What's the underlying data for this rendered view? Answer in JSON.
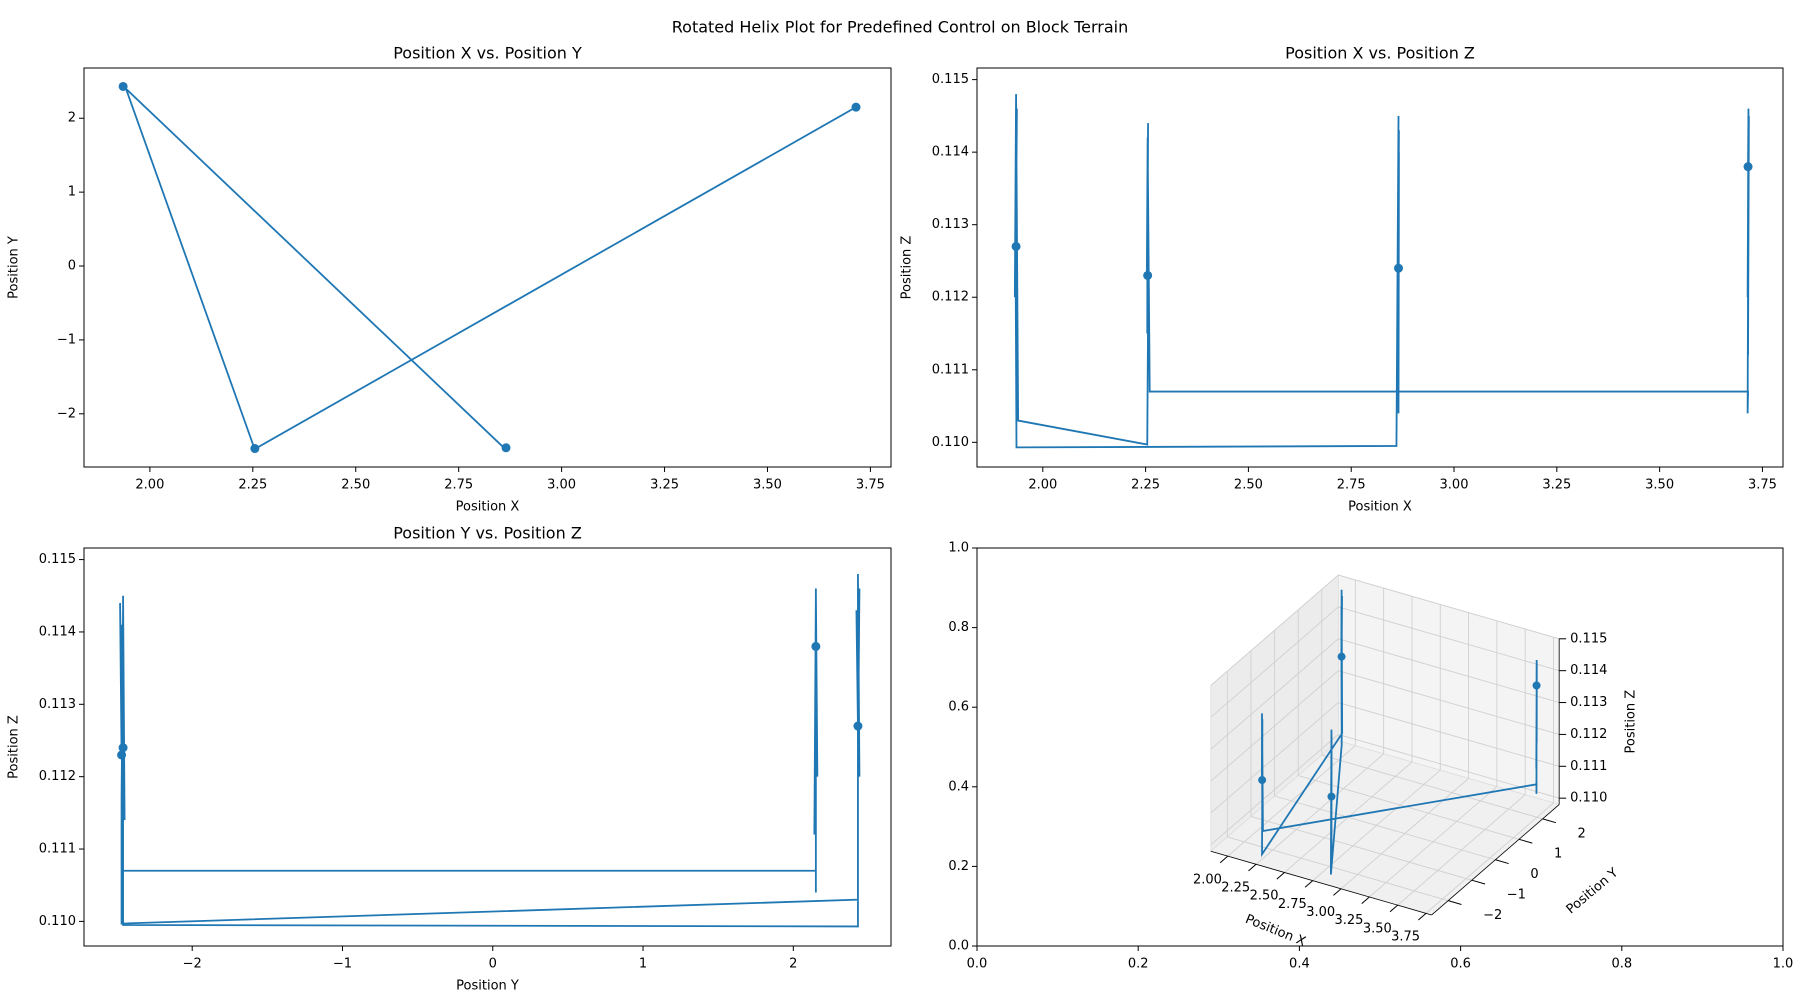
{
  "title": "Rotated Helix Plot for Predefined Control on Block Terrain",
  "chart_data": [
    {
      "type": "line",
      "title": "Position X vs. Position Y",
      "xlabel": "Position X",
      "ylabel": "Position Y",
      "color": "#1f77b4",
      "x": [
        3.715,
        3.716,
        3.714,
        3.717,
        3.715,
        3.716,
        3.714,
        3.715,
        2.26,
        2.255,
        2.254,
        2.256,
        2.253,
        2.255,
        2.256,
        2.254,
        1.94,
        1.935,
        1.932,
        1.936,
        1.933,
        1.937,
        1.934,
        1.936,
        2.86,
        2.865,
        2.863,
        2.866,
        2.864,
        2.866,
        2.865
      ],
      "values": [
        2.15,
        2.15,
        2.16,
        2.15,
        2.14,
        2.15,
        2.15,
        2.15,
        -2.46,
        -2.47,
        -2.46,
        -2.48,
        -2.47,
        -2.46,
        -2.47,
        -2.47,
        2.43,
        2.43,
        2.44,
        2.42,
        2.43,
        2.44,
        2.43,
        2.43,
        -2.46,
        -2.46,
        -2.45,
        -2.46,
        -2.47,
        -2.46,
        -2.46
      ],
      "markers": {
        "x": [
          3.715,
          2.255,
          1.935,
          2.865
        ],
        "values": [
          2.15,
          -2.47,
          2.43,
          -2.46
        ]
      },
      "xlim": [
        1.84,
        3.8
      ],
      "xticks": [
        {
          "value": 2,
          "label": "2.00"
        },
        {
          "value": 2.25,
          "label": "2.25"
        },
        {
          "value": 2.5,
          "label": "2.50"
        },
        {
          "value": 2.75,
          "label": "2.75"
        },
        {
          "value": 3,
          "label": "3.00"
        },
        {
          "value": 3.25,
          "label": "3.25"
        },
        {
          "value": 3.5,
          "label": "3.50"
        },
        {
          "value": 3.75,
          "label": "3.75"
        }
      ],
      "ylim": [
        -2.72,
        2.68
      ],
      "yticks": [
        {
          "value": -2,
          "label": "−2"
        },
        {
          "value": -1,
          "label": "−1"
        },
        0,
        1,
        2
      ]
    },
    {
      "type": "line",
      "title": "Position X vs. Position Z",
      "xlabel": "Position X",
      "ylabel": "Position Z",
      "color": "#1f77b4",
      "x": [
        3.715,
        3.716,
        3.714,
        3.717,
        3.715,
        3.716,
        3.714,
        3.715,
        2.26,
        2.255,
        2.254,
        2.256,
        2.253,
        2.255,
        2.256,
        2.254,
        1.94,
        1.935,
        1.932,
        1.936,
        1.933,
        1.937,
        1.934,
        1.936,
        2.86,
        2.865,
        2.863,
        2.866,
        2.864,
        2.866,
        2.865
      ],
      "values": [
        0.1138,
        0.1146,
        0.112,
        0.1145,
        0.1112,
        0.114,
        0.1104,
        0.1107,
        0.1107,
        0.1141,
        0.1115,
        0.1144,
        0.1123,
        0.1142,
        0.1117,
        0.10997,
        0.1103,
        0.1148,
        0.112,
        0.1143,
        0.1127,
        0.1146,
        0.1123,
        0.10993,
        0.10995,
        0.1145,
        0.1114,
        0.1143,
        0.1124,
        0.114,
        0.1104
      ],
      "markers": {
        "x": [
          3.715,
          2.255,
          1.935,
          2.865
        ],
        "values": [
          0.1138,
          0.1123,
          0.1127,
          0.1124
        ]
      },
      "xlim": [
        1.84,
        3.8
      ],
      "xticks": [
        {
          "value": 2,
          "label": "2.00"
        },
        {
          "value": 2.25,
          "label": "2.25"
        },
        {
          "value": 2.5,
          "label": "2.50"
        },
        {
          "value": 2.75,
          "label": "2.75"
        },
        {
          "value": 3,
          "label": "3.00"
        },
        {
          "value": 3.25,
          "label": "3.25"
        },
        {
          "value": 3.5,
          "label": "3.50"
        },
        {
          "value": 3.75,
          "label": "3.75"
        }
      ],
      "ylim": [
        0.10966,
        0.11516
      ],
      "yticks": [
        {
          "value": 0.11,
          "label": "0.110"
        },
        0.111,
        0.112,
        0.113,
        0.114,
        0.115
      ]
    },
    {
      "type": "line",
      "title": "Position Y vs. Position Z",
      "xlabel": "Position Y",
      "ylabel": "Position Z",
      "color": "#1f77b4",
      "x": [
        2.15,
        2.15,
        2.16,
        2.15,
        2.14,
        2.15,
        2.15,
        2.15,
        -2.46,
        -2.47,
        -2.46,
        -2.48,
        -2.47,
        -2.46,
        -2.47,
        -2.47,
        2.43,
        2.43,
        2.44,
        2.42,
        2.43,
        2.44,
        2.43,
        2.43,
        -2.46,
        -2.46,
        -2.45,
        -2.46,
        -2.47,
        -2.46,
        -2.46
      ],
      "values": [
        0.1138,
        0.1146,
        0.112,
        0.1145,
        0.1112,
        0.114,
        0.1104,
        0.1107,
        0.1107,
        0.1141,
        0.1115,
        0.1144,
        0.1123,
        0.1142,
        0.1117,
        0.10997,
        0.1103,
        0.1148,
        0.112,
        0.1143,
        0.1127,
        0.1146,
        0.1123,
        0.10993,
        0.10995,
        0.1145,
        0.1114,
        0.1143,
        0.1124,
        0.114,
        0.1104
      ],
      "markers": {
        "x": [
          2.15,
          -2.47,
          2.43,
          -2.46
        ],
        "values": [
          0.1138,
          0.1123,
          0.1127,
          0.1124
        ]
      },
      "xlim": [
        -2.72,
        2.65
      ],
      "xticks": [
        {
          "value": -2,
          "label": "−2"
        },
        {
          "value": -1,
          "label": "−1"
        },
        0,
        1,
        2
      ],
      "ylim": [
        0.10966,
        0.11516
      ],
      "yticks": [
        {
          "value": 0.11,
          "label": "0.110"
        },
        0.111,
        0.112,
        0.113,
        0.114,
        0.115
      ]
    },
    {
      "type": "line3d",
      "xlabel": "Position X",
      "ylabel": "Position Y",
      "zlabel": "Position Z",
      "color": "#1f77b4",
      "x": [
        3.715,
        3.716,
        3.714,
        3.717,
        3.715,
        3.716,
        3.714,
        3.715,
        2.26,
        2.255,
        2.254,
        2.256,
        2.253,
        2.255,
        2.256,
        2.254,
        1.94,
        1.935,
        1.932,
        1.936,
        1.933,
        1.937,
        1.934,
        1.936,
        2.86,
        2.865,
        2.863,
        2.866,
        2.864,
        2.866,
        2.865
      ],
      "y": [
        2.15,
        2.15,
        2.16,
        2.15,
        2.14,
        2.15,
        2.15,
        2.15,
        -2.46,
        -2.47,
        -2.46,
        -2.48,
        -2.47,
        -2.46,
        -2.47,
        -2.47,
        2.43,
        2.43,
        2.44,
        2.42,
        2.43,
        2.44,
        2.43,
        2.43,
        -2.46,
        -2.46,
        -2.45,
        -2.46,
        -2.47,
        -2.46,
        -2.46
      ],
      "z": [
        0.1138,
        0.1146,
        0.112,
        0.1145,
        0.1112,
        0.114,
        0.1104,
        0.1107,
        0.1107,
        0.1141,
        0.1115,
        0.1144,
        0.1123,
        0.1142,
        0.1117,
        0.10997,
        0.1103,
        0.1148,
        0.112,
        0.1143,
        0.1127,
        0.1146,
        0.1123,
        0.10993,
        0.10995,
        0.1145,
        0.1114,
        0.1143,
        0.1124,
        0.114,
        0.1104
      ],
      "markers": {
        "x": [
          3.715,
          2.255,
          1.935,
          2.865
        ],
        "y": [
          2.15,
          -2.47,
          2.43,
          -2.46
        ],
        "z": [
          0.1138,
          0.1123,
          0.1127,
          0.1124
        ]
      },
      "xlim": [
        1.85,
        3.8
      ],
      "xticks": [
        {
          "value": 2,
          "label": "2.00"
        },
        {
          "value": 2.25,
          "label": "2.25"
        },
        {
          "value": 2.5,
          "label": "2.50"
        },
        {
          "value": 2.75,
          "label": "2.75"
        },
        {
          "value": 3,
          "label": "3.00"
        },
        {
          "value": 3.25,
          "label": "3.25"
        },
        {
          "value": 3.5,
          "label": "3.50"
        },
        {
          "value": 3.75,
          "label": "3.75"
        }
      ],
      "ylim": [
        -2.7,
        2.7
      ],
      "yticks": [
        {
          "value": -2,
          "label": "−2"
        },
        {
          "value": -1,
          "label": "−1"
        },
        0,
        1,
        2
      ],
      "zlim": [
        0.1098,
        0.115
      ],
      "zticks": [
        {
          "value": 0.11,
          "label": "0.110"
        },
        0.111,
        0.112,
        0.113,
        0.114,
        0.115
      ],
      "frame": {
        "xlim": [
          0,
          1
        ],
        "xticks": [
          {
            "value": 0,
            "label": "0.0"
          },
          0.2,
          0.4,
          0.6,
          0.8,
          {
            "value": 1,
            "label": "1.0"
          }
        ],
        "ylim": [
          0,
          1
        ],
        "yticks": [
          {
            "value": 0,
            "label": "0.0"
          },
          0.2,
          0.4,
          0.6,
          0.8,
          {
            "value": 1,
            "label": "1.0"
          }
        ]
      }
    }
  ]
}
